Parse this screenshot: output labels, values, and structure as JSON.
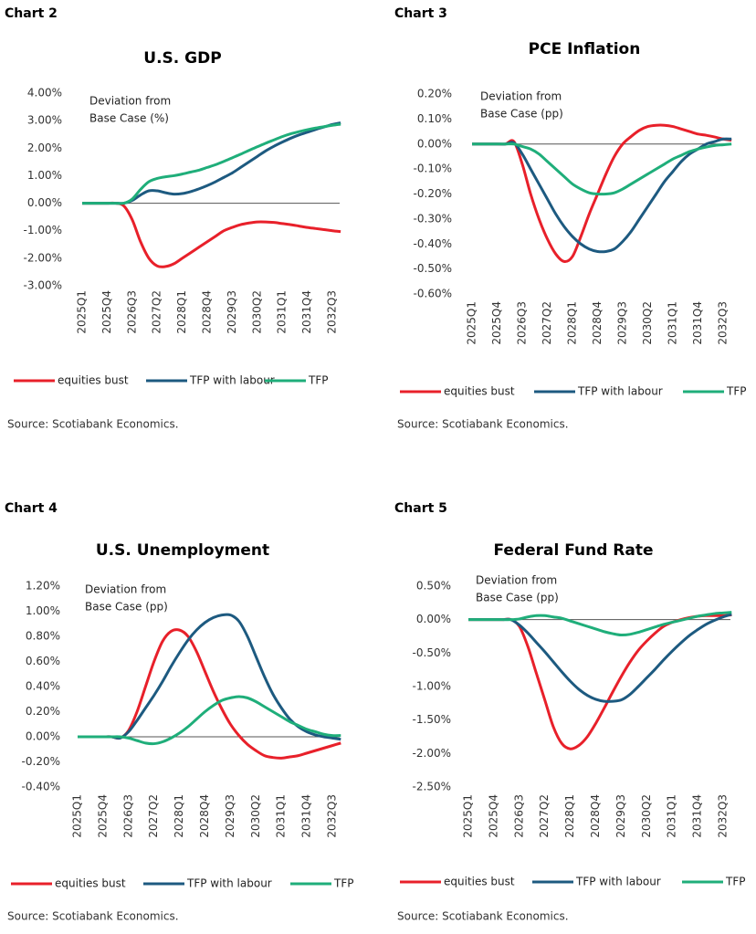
{
  "chart_data": [
    {
      "type": "line",
      "label": "Chart 2",
      "title": "U.S. GDP",
      "annotation": [
        "Deviation from",
        "Base Case (%)"
      ],
      "source": "Source: Scotiabank Economics.",
      "categories": [
        "2025Q1",
        null,
        null,
        "2025Q4",
        null,
        null,
        "2026Q3",
        null,
        null,
        "2027Q2",
        null,
        null,
        "2028Q1",
        null,
        null,
        "2028Q4",
        null,
        null,
        "2029Q3",
        null,
        null,
        "2030Q2",
        null,
        null,
        "2031Q1",
        null,
        null,
        "2031Q4",
        null,
        null,
        "2032Q3",
        null
      ],
      "ylim": [
        -3,
        4
      ],
      "yticks": [
        {
          "value": -3,
          "label": "-3.00%"
        },
        {
          "value": -2,
          "label": "-2.00%"
        },
        {
          "value": -1,
          "label": "-1.00%"
        },
        {
          "value": 0,
          "label": "0.00%"
        },
        {
          "value": 1,
          "label": "1.00%"
        },
        {
          "value": 2,
          "label": "2.00%"
        },
        {
          "value": 3,
          "label": "3.00%"
        },
        {
          "value": 4,
          "label": "4.00%"
        }
      ],
      "series": [
        {
          "name": "equities bust",
          "color": "#e8202a",
          "values": [
            0,
            0,
            0,
            0,
            0,
            -0.1,
            -0.6,
            -1.4,
            -2.0,
            -2.28,
            -2.3,
            -2.2,
            -2.0,
            -1.8,
            -1.6,
            -1.4,
            -1.2,
            -1.0,
            -0.88,
            -0.78,
            -0.72,
            -0.68,
            -0.68,
            -0.7,
            -0.74,
            -0.78,
            -0.83,
            -0.88,
            -0.92,
            -0.96,
            -1.0,
            -1.03
          ]
        },
        {
          "name": "TFP with labour",
          "color": "#1d5a80",
          "values": [
            0,
            0,
            0,
            0,
            0,
            0,
            0.1,
            0.3,
            0.45,
            0.45,
            0.38,
            0.33,
            0.35,
            0.42,
            0.52,
            0.64,
            0.78,
            0.94,
            1.1,
            1.3,
            1.5,
            1.7,
            1.9,
            2.07,
            2.22,
            2.36,
            2.48,
            2.58,
            2.68,
            2.77,
            2.86,
            2.92
          ]
        },
        {
          "name": "TFP",
          "color": "#1fae7a",
          "values": [
            0,
            0,
            0,
            0,
            0,
            0,
            0.15,
            0.5,
            0.78,
            0.9,
            0.96,
            1.0,
            1.06,
            1.13,
            1.2,
            1.3,
            1.4,
            1.52,
            1.65,
            1.78,
            1.92,
            2.05,
            2.18,
            2.3,
            2.42,
            2.52,
            2.6,
            2.67,
            2.73,
            2.78,
            2.83,
            2.87
          ]
        }
      ]
    },
    {
      "type": "line",
      "label": "Chart 3",
      "title": "PCE Inflation",
      "annotation": [
        "Deviation from",
        "Base Case (pp)"
      ],
      "source": "Source: Scotiabank Economics.",
      "categories": [
        "2025Q1",
        null,
        null,
        "2025Q4",
        null,
        null,
        "2026Q3",
        null,
        null,
        "2027Q2",
        null,
        null,
        "2028Q1",
        null,
        null,
        "2028Q4",
        null,
        null,
        "2029Q3",
        null,
        null,
        "2030Q2",
        null,
        null,
        "2031Q1",
        null,
        null,
        "2031Q4",
        null,
        null,
        "2032Q3",
        null
      ],
      "ylim": [
        -0.6,
        0.2
      ],
      "yticks": [
        {
          "value": -0.6,
          "label": "-0.60%"
        },
        {
          "value": -0.5,
          "label": "-0.50%"
        },
        {
          "value": -0.4,
          "label": "-0.40%"
        },
        {
          "value": -0.3,
          "label": "-0.30%"
        },
        {
          "value": -0.2,
          "label": "-0.20%"
        },
        {
          "value": -0.1,
          "label": "-0.10%"
        },
        {
          "value": 0,
          "label": "0.00%"
        },
        {
          "value": 0.1,
          "label": "0.10%"
        },
        {
          "value": 0.2,
          "label": "0.20%"
        }
      ],
      "series": [
        {
          "name": "equities bust",
          "color": "#e8202a",
          "values": [
            0,
            0,
            0,
            0,
            0,
            0.01,
            -0.08,
            -0.2,
            -0.3,
            -0.38,
            -0.44,
            -0.47,
            -0.45,
            -0.37,
            -0.28,
            -0.2,
            -0.12,
            -0.05,
            0.0,
            0.03,
            0.055,
            0.07,
            0.075,
            0.075,
            0.07,
            0.06,
            0.05,
            0.04,
            0.035,
            0.028,
            0.02,
            0.015
          ]
        },
        {
          "name": "TFP with labour",
          "color": "#1d5a80",
          "values": [
            0,
            0,
            0,
            0,
            0,
            0.005,
            -0.04,
            -0.1,
            -0.16,
            -0.22,
            -0.28,
            -0.33,
            -0.37,
            -0.4,
            -0.42,
            -0.43,
            -0.43,
            -0.42,
            -0.39,
            -0.35,
            -0.3,
            -0.25,
            -0.2,
            -0.15,
            -0.11,
            -0.07,
            -0.04,
            -0.02,
            0.0,
            0.01,
            0.02,
            0.02
          ]
        },
        {
          "name": "TFP",
          "color": "#1fae7a",
          "values": [
            0,
            0,
            0,
            0,
            0,
            0,
            -0.01,
            -0.02,
            -0.04,
            -0.07,
            -0.1,
            -0.13,
            -0.16,
            -0.18,
            -0.195,
            -0.2,
            -0.2,
            -0.195,
            -0.18,
            -0.16,
            -0.14,
            -0.12,
            -0.1,
            -0.08,
            -0.06,
            -0.045,
            -0.03,
            -0.02,
            -0.012,
            -0.006,
            -0.003,
            0.0
          ]
        }
      ]
    },
    {
      "type": "line",
      "label": "Chart 4",
      "title": "U.S. Unemployment",
      "annotation": [
        "Deviation from",
        "Base Case (pp)"
      ],
      "source": "Source: Scotiabank Economics.",
      "categories": [
        "2025Q1",
        null,
        null,
        "2025Q4",
        null,
        null,
        "2026Q3",
        null,
        null,
        "2027Q2",
        null,
        null,
        "2028Q1",
        null,
        null,
        "2028Q4",
        null,
        null,
        "2029Q3",
        null,
        null,
        "2030Q2",
        null,
        null,
        "2031Q1",
        null,
        null,
        "2031Q4",
        null,
        null,
        "2032Q3",
        null
      ],
      "ylim": [
        -0.4,
        1.2
      ],
      "yticks": [
        {
          "value": -0.4,
          "label": "-0.40%"
        },
        {
          "value": -0.2,
          "label": "-0.20%"
        },
        {
          "value": 0,
          "label": "0.00%"
        },
        {
          "value": 0.2,
          "label": "0.20%"
        },
        {
          "value": 0.4,
          "label": "0.40%"
        },
        {
          "value": 0.6,
          "label": "0.60%"
        },
        {
          "value": 0.8,
          "label": "0.80%"
        },
        {
          "value": 1.0,
          "label": "1.00%"
        },
        {
          "value": 1.2,
          "label": "1.20%"
        }
      ],
      "series": [
        {
          "name": "equities bust",
          "color": "#e8202a",
          "values": [
            0,
            0,
            0,
            0,
            0,
            -0.01,
            0.05,
            0.2,
            0.4,
            0.6,
            0.76,
            0.84,
            0.85,
            0.8,
            0.68,
            0.52,
            0.36,
            0.22,
            0.1,
            0.01,
            -0.06,
            -0.11,
            -0.15,
            -0.165,
            -0.17,
            -0.16,
            -0.15,
            -0.13,
            -0.11,
            -0.09,
            -0.07,
            -0.05
          ]
        },
        {
          "name": "TFP with labour",
          "color": "#1d5a80",
          "values": [
            0,
            0,
            0,
            0,
            0,
            -0.01,
            0.04,
            0.13,
            0.23,
            0.33,
            0.44,
            0.56,
            0.67,
            0.77,
            0.85,
            0.91,
            0.95,
            0.97,
            0.97,
            0.92,
            0.8,
            0.64,
            0.48,
            0.34,
            0.23,
            0.14,
            0.08,
            0.04,
            0.015,
            0.0,
            -0.01,
            -0.02
          ]
        },
        {
          "name": "TFP",
          "color": "#1fae7a",
          "values": [
            0,
            0,
            0,
            0,
            0,
            0,
            -0.01,
            -0.03,
            -0.05,
            -0.055,
            -0.04,
            -0.01,
            0.03,
            0.08,
            0.14,
            0.2,
            0.25,
            0.29,
            0.31,
            0.32,
            0.31,
            0.28,
            0.24,
            0.2,
            0.16,
            0.12,
            0.09,
            0.06,
            0.04,
            0.02,
            0.01,
            0.01
          ]
        }
      ]
    },
    {
      "type": "line",
      "label": "Chart 5",
      "title": "Federal Fund Rate",
      "annotation": [
        "Deviation from",
        "Base Case (pp)"
      ],
      "source": "Source: Scotiabank Economics.",
      "categories": [
        "2025Q1",
        null,
        null,
        "2025Q4",
        null,
        null,
        "2026Q3",
        null,
        null,
        "2027Q2",
        null,
        null,
        "2028Q1",
        null,
        null,
        "2028Q4",
        null,
        null,
        "2029Q3",
        null,
        null,
        "2030Q2",
        null,
        null,
        "2031Q1",
        null,
        null,
        "2031Q4",
        null,
        null,
        "2032Q3",
        null
      ],
      "ylim": [
        -2.5,
        0.5
      ],
      "yticks": [
        {
          "value": -2.5,
          "label": "-2.50%"
        },
        {
          "value": -2.0,
          "label": "-2.00%"
        },
        {
          "value": -1.5,
          "label": "-1.50%"
        },
        {
          "value": -1.0,
          "label": "-1.00%"
        },
        {
          "value": -0.5,
          "label": "-0.50%"
        },
        {
          "value": 0,
          "label": "0.00%"
        },
        {
          "value": 0.5,
          "label": "0.50%"
        }
      ],
      "series": [
        {
          "name": "equities bust",
          "color": "#e8202a",
          "values": [
            0,
            0,
            0,
            0,
            0,
            0,
            -0.1,
            -0.4,
            -0.8,
            -1.2,
            -1.6,
            -1.85,
            -1.93,
            -1.88,
            -1.75,
            -1.55,
            -1.32,
            -1.08,
            -0.85,
            -0.64,
            -0.46,
            -0.32,
            -0.2,
            -0.1,
            -0.04,
            0.0,
            0.03,
            0.05,
            0.06,
            0.06,
            0.06,
            0.07
          ]
        },
        {
          "name": "TFP with labour",
          "color": "#1d5a80",
          "values": [
            0,
            0,
            0,
            0,
            0,
            0,
            -0.08,
            -0.2,
            -0.34,
            -0.48,
            -0.63,
            -0.78,
            -0.92,
            -1.04,
            -1.13,
            -1.19,
            -1.22,
            -1.22,
            -1.2,
            -1.12,
            -1.0,
            -0.87,
            -0.74,
            -0.6,
            -0.47,
            -0.35,
            -0.24,
            -0.15,
            -0.07,
            -0.01,
            0.04,
            0.08
          ]
        },
        {
          "name": "TFP",
          "color": "#1fae7a",
          "values": [
            0,
            0,
            0,
            0,
            0,
            0,
            0.01,
            0.04,
            0.06,
            0.06,
            0.04,
            0.02,
            -0.02,
            -0.06,
            -0.1,
            -0.14,
            -0.18,
            -0.21,
            -0.23,
            -0.22,
            -0.19,
            -0.15,
            -0.11,
            -0.07,
            -0.04,
            -0.01,
            0.02,
            0.05,
            0.07,
            0.09,
            0.1,
            0.11
          ]
        }
      ]
    }
  ]
}
